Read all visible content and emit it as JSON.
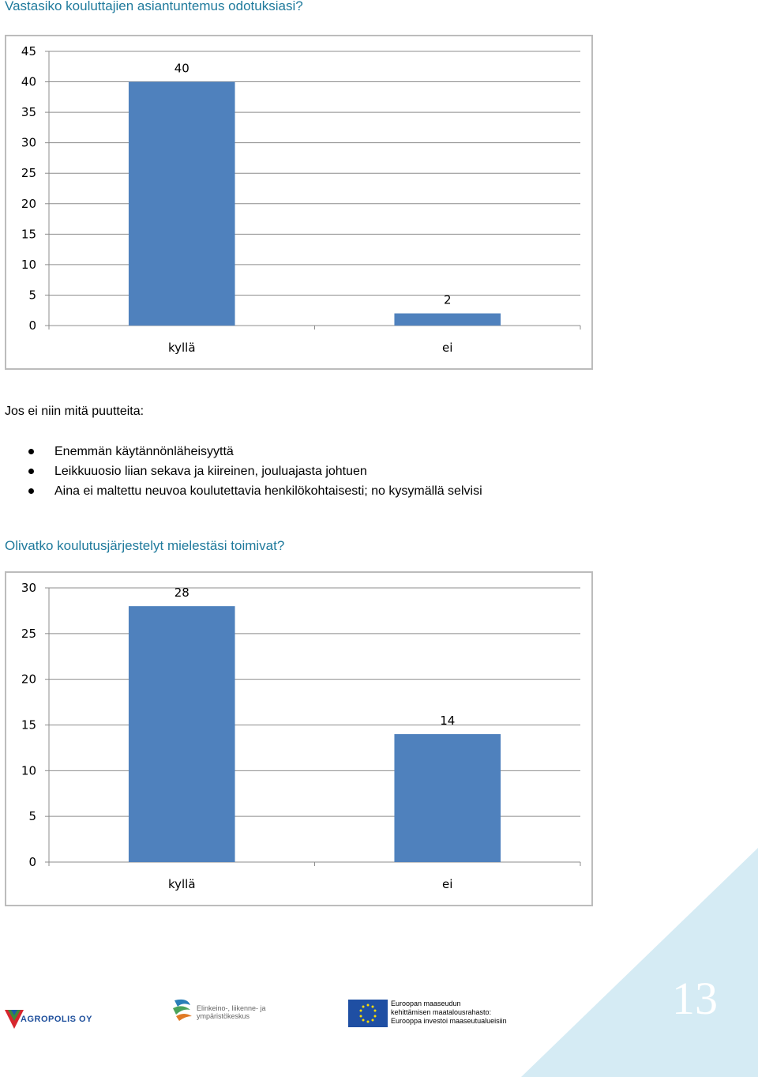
{
  "heading1": "Vastasiko kouluttajien asiantuntemus odotuksiasi?",
  "heading2": "Olivatko koulutusjärjestelyt mielestäsi toimivat?",
  "intro": "Jos ei niin mitä puutteita:",
  "bullets": [
    "Enemmän käytännönläheisyyttä",
    "Leikkuuosio liian sekava ja kiireinen, jouluajasta johtuen",
    "Aina ei maltettu neuvoa koulutettavia henkilökohtaisesti; no kysymällä selvisi"
  ],
  "chart_data": [
    {
      "type": "bar",
      "categories": [
        "kyllä",
        "ei"
      ],
      "values": [
        40,
        2
      ],
      "yticks": [
        0,
        5,
        10,
        15,
        20,
        25,
        30,
        35,
        40,
        45
      ],
      "ylim": [
        0,
        45
      ],
      "grid": true,
      "legend": "none",
      "bar_color": "#4f81bd"
    },
    {
      "type": "bar",
      "categories": [
        "kyllä",
        "ei"
      ],
      "values": [
        28,
        14
      ],
      "yticks": [
        0,
        5,
        10,
        15,
        20,
        25,
        30
      ],
      "ylim": [
        0,
        30
      ],
      "grid": true,
      "legend": "none",
      "bar_color": "#4f81bd"
    }
  ],
  "footer": {
    "page_number": "13",
    "accent_color": "#d5ebf4",
    "logos": {
      "agropolis": "AGROPOLIS OY",
      "ely_line1": "Elinkeino-, liikenne- ja",
      "ely_line2": "ympäristökeskus",
      "eu_line1": "Euroopan maaseudun",
      "eu_line2": "kehittämisen maatalousrahasto:",
      "eu_line3": "Eurooppa investoi maaseutualueisiin"
    }
  }
}
